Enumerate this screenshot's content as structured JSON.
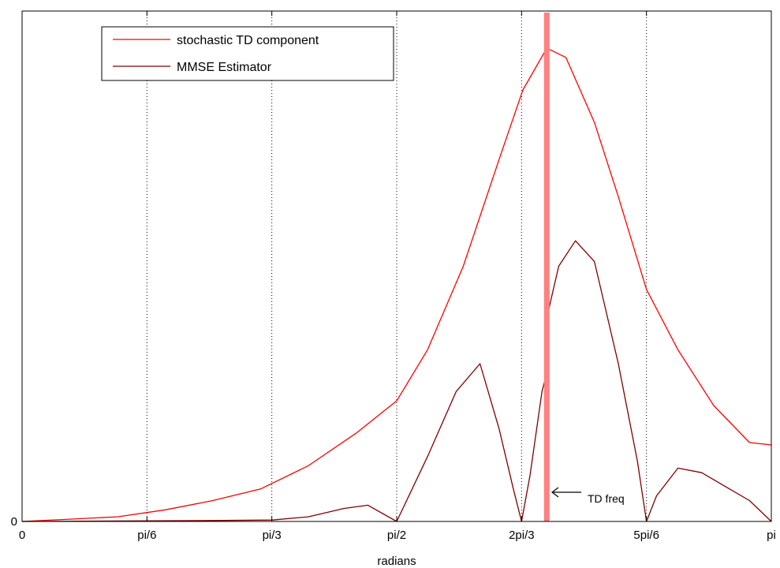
{
  "chart_data": {
    "type": "line",
    "title": "",
    "xlabel": "radians",
    "ylabel": "",
    "xlim": [
      0,
      3.14159
    ],
    "ylim": [
      0,
      1.1
    ],
    "grid": "x-dotted",
    "legend_position": "top-left",
    "x_ticks": [
      {
        "value": 0,
        "label": "0"
      },
      {
        "value": 0.5236,
        "label": "pi/6"
      },
      {
        "value": 1.0472,
        "label": "pi/3"
      },
      {
        "value": 1.5708,
        "label": "pi/2"
      },
      {
        "value": 2.0944,
        "label": "2pi/3"
      },
      {
        "value": 2.618,
        "label": "5pi/6"
      },
      {
        "value": 3.1416,
        "label": "pi"
      }
    ],
    "y_ticks": [
      {
        "value": 0,
        "label": "0"
      }
    ],
    "series": [
      {
        "name": "stochastic TD component",
        "color": "#ff0000",
        "x": [
          0,
          0.2,
          0.4,
          0.6,
          0.8,
          1.0,
          1.2,
          1.4,
          1.5708,
          1.7,
          1.85,
          2.0,
          2.1,
          2.2,
          2.28,
          2.4,
          2.5,
          2.618,
          2.75,
          2.9,
          3.05,
          3.1416
        ],
        "y": [
          0.0,
          0.005,
          0.01,
          0.025,
          0.045,
          0.07,
          0.12,
          0.19,
          0.26,
          0.37,
          0.55,
          0.78,
          0.93,
          1.02,
          1.0,
          0.86,
          0.7,
          0.5,
          0.37,
          0.25,
          0.17,
          0.165
        ]
      },
      {
        "name": "MMSE Estimator",
        "color": "#800000",
        "x": [
          0,
          0.4,
          0.8,
          1.05,
          1.2,
          1.35,
          1.45,
          1.5708,
          1.7,
          1.82,
          1.92,
          2.0,
          2.06,
          2.0944,
          2.13,
          2.18,
          2.2,
          2.205,
          2.25,
          2.32,
          2.4,
          2.5,
          2.58,
          2.618,
          2.66,
          2.75,
          2.85,
          2.95,
          3.05,
          3.1416
        ],
        "y": [
          0.0,
          0.001,
          0.002,
          0.003,
          0.01,
          0.028,
          0.035,
          0.0,
          0.14,
          0.28,
          0.34,
          0.2,
          0.07,
          0.0,
          0.1,
          0.28,
          0.32,
          0.45,
          0.55,
          0.605,
          0.56,
          0.34,
          0.13,
          0.0,
          0.055,
          0.115,
          0.105,
          0.075,
          0.045,
          0.0
        ]
      }
    ],
    "reference_line": {
      "x": 2.2,
      "label": "TD freq",
      "color": "#ff8080"
    }
  }
}
